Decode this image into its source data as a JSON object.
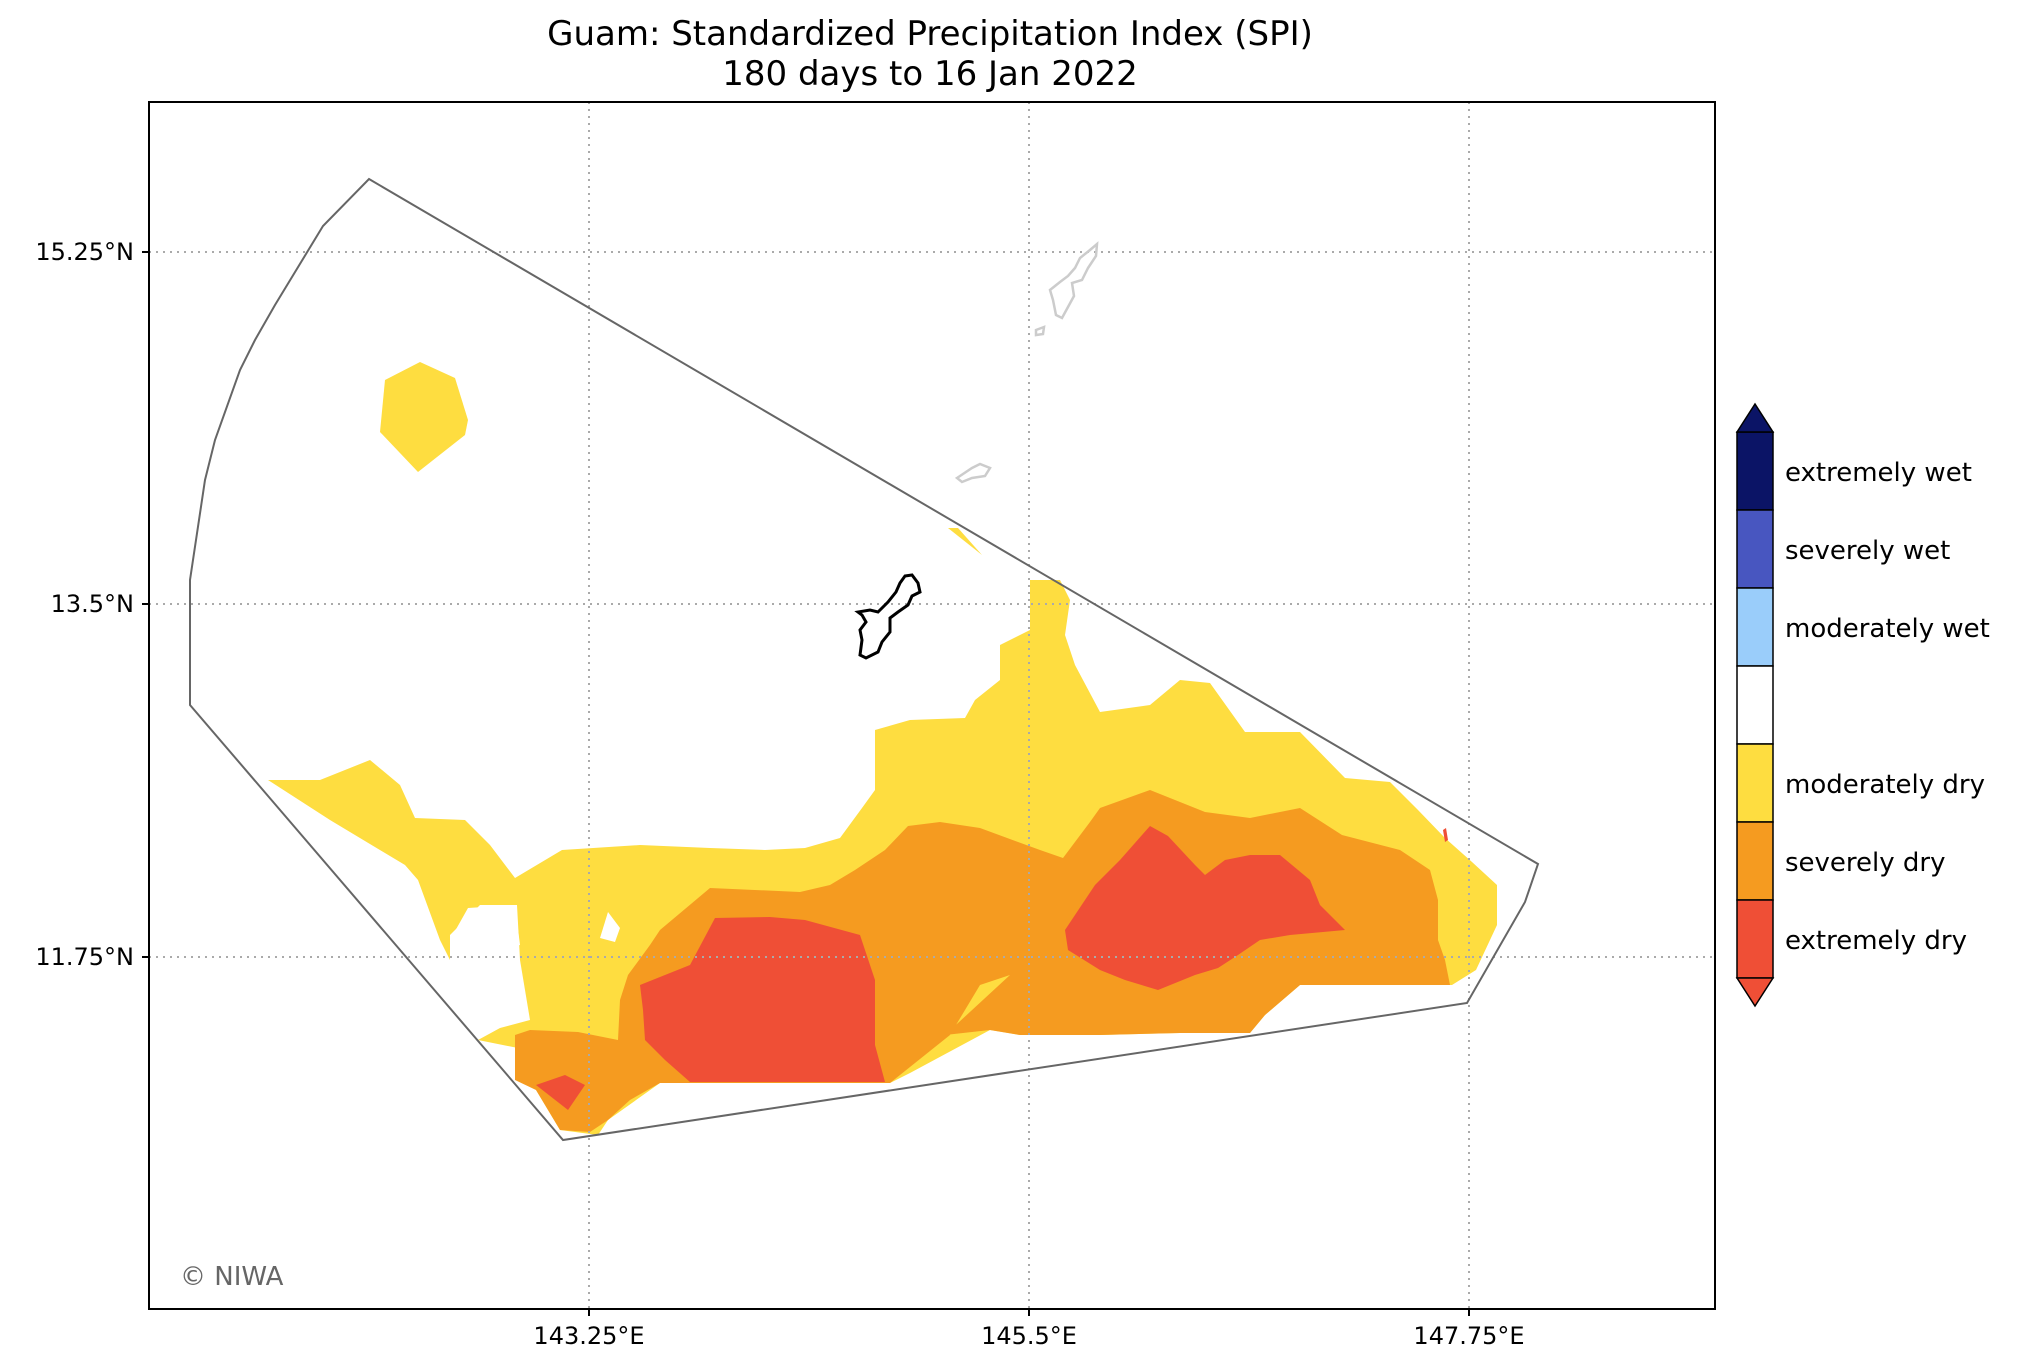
{
  "title": "Guam: Standardized Precipitation Index (SPI)",
  "subtitle": "180 days to 16 Jan 2022",
  "credit": "© NIWA",
  "axes": {
    "lat_ticks": [
      "15.25°N",
      "13.5°N",
      "11.75°N"
    ],
    "lon_ticks": [
      "143.25°E",
      "145.5°E",
      "147.75°E"
    ],
    "lat_range": [
      10.0,
      16.0
    ],
    "lon_range": [
      141.0,
      149.0
    ],
    "gridlines": "dotted"
  },
  "legend": {
    "categories": [
      {
        "label": "extremely wet",
        "color": "#0b1466"
      },
      {
        "label": "severely wet",
        "color": "#4856c0"
      },
      {
        "label": "moderately wet",
        "color": "#9acdfa"
      },
      {
        "label": "",
        "color": "#ffffff"
      },
      {
        "label": "moderately dry",
        "color": "#fedd40"
      },
      {
        "label": "severely dry",
        "color": "#f59b20"
      },
      {
        "label": "extremely dry",
        "color": "#ef4f36"
      }
    ],
    "extend_top_color": "#0b1466",
    "extend_bottom_color": "#ef4f36"
  },
  "colors": {
    "region_outline": "#666666",
    "guam_outline": "#000000",
    "other_islands": "#cccccc"
  }
}
